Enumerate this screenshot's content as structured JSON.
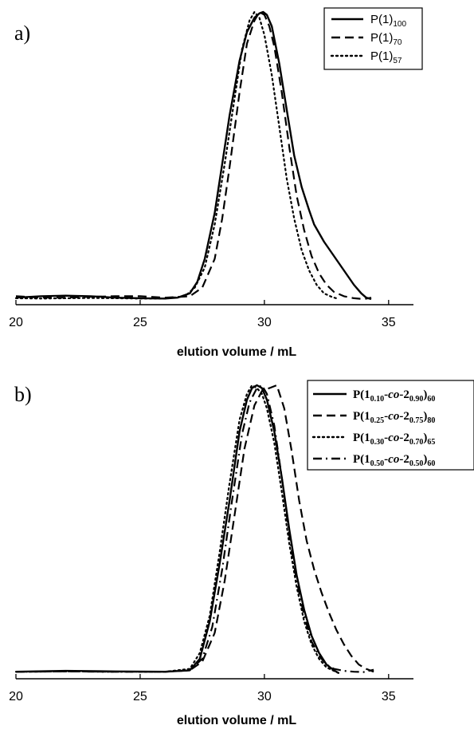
{
  "chart_data": [
    {
      "panel": "a)",
      "type": "line",
      "xlabel": "elution volume / mL",
      "ylabel": "",
      "xlim": [
        20,
        36
      ],
      "ylim": [
        0,
        1.0
      ],
      "xticks": [
        "20",
        "25",
        "30",
        "35"
      ],
      "grid": false,
      "legend_position": "top-right",
      "series": [
        {
          "name": "P(1)100",
          "name_main": "P(1)",
          "name_sub": "100",
          "dash": "solid",
          "x": [
            20,
            21,
            22,
            23,
            24,
            25,
            26,
            26.5,
            27,
            27.3,
            27.6,
            28,
            28.3,
            28.6,
            29,
            29.3,
            29.6,
            29.8,
            29.95,
            30.1,
            30.3,
            30.6,
            30.9,
            31.2,
            31.5,
            31.8,
            32,
            32.4,
            32.8,
            33.2,
            33.6,
            33.9,
            34.1,
            34.3
          ],
          "y": [
            0.005,
            0.01,
            0.012,
            0.01,
            0.005,
            0.003,
            0.002,
            0.005,
            0.02,
            0.06,
            0.14,
            0.3,
            0.47,
            0.64,
            0.83,
            0.93,
            0.98,
            0.995,
            1.0,
            0.99,
            0.95,
            0.82,
            0.66,
            0.5,
            0.39,
            0.31,
            0.26,
            0.2,
            0.15,
            0.1,
            0.05,
            0.02,
            0.005,
            0.0
          ]
        },
        {
          "name": "P(1)70",
          "name_main": "P(1)",
          "name_sub": "70",
          "dash": "dashed",
          "x": [
            20,
            21,
            22,
            23,
            24,
            25,
            26,
            27,
            27.5,
            28,
            28.3,
            28.6,
            29,
            29.3,
            29.6,
            29.8,
            30.0,
            30.2,
            30.4,
            30.7,
            31,
            31.3,
            31.6,
            31.9,
            32.2,
            32.5,
            32.8,
            33.2,
            33.6,
            34.0,
            34.3
          ],
          "y": [
            0.01,
            0.005,
            0.005,
            0.008,
            0.01,
            0.01,
            0.005,
            0.01,
            0.04,
            0.14,
            0.28,
            0.46,
            0.72,
            0.89,
            0.97,
            1.0,
            0.99,
            0.95,
            0.88,
            0.72,
            0.53,
            0.36,
            0.24,
            0.15,
            0.09,
            0.05,
            0.025,
            0.01,
            0.003,
            0.0,
            0.005
          ]
        },
        {
          "name": "P(1)57",
          "name_main": "P(1)",
          "name_sub": "57",
          "dash": "dotted",
          "x": [
            20,
            21,
            22,
            23,
            24,
            25,
            26,
            26.8,
            27.2,
            27.6,
            28,
            28.4,
            28.8,
            29.1,
            29.4,
            29.6,
            29.8,
            30.0,
            30.3,
            30.6,
            30.9,
            31.2,
            31.5,
            31.8,
            32.1,
            32.4,
            32.7,
            33
          ],
          "y": [
            0.003,
            0.002,
            0.003,
            0.004,
            0.003,
            0.002,
            0.002,
            0.01,
            0.04,
            0.11,
            0.26,
            0.47,
            0.7,
            0.87,
            0.97,
            1.0,
            0.98,
            0.92,
            0.78,
            0.6,
            0.42,
            0.28,
            0.17,
            0.1,
            0.05,
            0.02,
            0.008,
            0.0
          ]
        }
      ]
    },
    {
      "panel": "b)",
      "type": "line",
      "xlabel": "elution volume / mL",
      "ylabel": "",
      "xlim": [
        20,
        36
      ],
      "ylim": [
        0,
        1.0
      ],
      "xticks": [
        "20",
        "25",
        "30",
        "35"
      ],
      "grid": false,
      "legend_position": "top-right",
      "series": [
        {
          "name": "P(10.10-co-20.90)60",
          "name_parts": [
            "P(1",
            "0.10",
            "-",
            "co",
            "-2",
            "0.90",
            ")",
            "60"
          ],
          "dash": "solid",
          "x": [
            20,
            22,
            24,
            26,
            27,
            27.4,
            27.8,
            28.2,
            28.6,
            29,
            29.3,
            29.5,
            29.7,
            29.9,
            30.1,
            30.4,
            30.7,
            31,
            31.3,
            31.6,
            31.9,
            32.2,
            32.5,
            32.8,
            33
          ],
          "y": [
            0.005,
            0.008,
            0.006,
            0.005,
            0.01,
            0.05,
            0.18,
            0.38,
            0.6,
            0.84,
            0.95,
            0.99,
            1.0,
            0.99,
            0.95,
            0.84,
            0.68,
            0.5,
            0.34,
            0.22,
            0.13,
            0.07,
            0.03,
            0.01,
            0.0
          ]
        },
        {
          "name": "P(10.25-co-20.75)80",
          "name_parts": [
            "P(1",
            "0.25",
            "-",
            "co",
            "-2",
            "0.75",
            ")",
            "80"
          ],
          "dash": "dashed",
          "x": [
            20,
            22,
            24,
            26,
            27,
            27.5,
            28,
            28.4,
            28.8,
            29.2,
            29.6,
            29.9,
            30.2,
            30.5,
            30.8,
            31.1,
            31.4,
            31.7,
            32,
            32.3,
            32.6,
            32.9,
            33.2,
            33.5,
            33.8,
            34.1,
            34.4
          ],
          "y": [
            0.005,
            0.006,
            0.005,
            0.005,
            0.01,
            0.04,
            0.14,
            0.32,
            0.55,
            0.78,
            0.93,
            0.98,
            0.99,
            1.0,
            0.92,
            0.77,
            0.6,
            0.46,
            0.36,
            0.28,
            0.21,
            0.15,
            0.1,
            0.06,
            0.03,
            0.015,
            0.005
          ]
        },
        {
          "name": "P(10.30-co-20.70)65",
          "name_parts": [
            "P(1",
            "0.30",
            "-",
            "co",
            "-2",
            "0.70",
            ")",
            "65"
          ],
          "dash": "dotted",
          "x": [
            20,
            22,
            24,
            26,
            27,
            27.4,
            27.8,
            28.2,
            28.6,
            29,
            29.3,
            29.5,
            29.7,
            29.9,
            30.1,
            30.4,
            30.7,
            31,
            31.3,
            31.6,
            31.9,
            32.2,
            32.5,
            33
          ],
          "y": [
            0.005,
            0.006,
            0.005,
            0.005,
            0.015,
            0.07,
            0.2,
            0.42,
            0.66,
            0.88,
            0.97,
            1.0,
            0.99,
            0.97,
            0.92,
            0.8,
            0.63,
            0.45,
            0.3,
            0.18,
            0.1,
            0.05,
            0.02,
            0.0
          ]
        },
        {
          "name": "P(10.50-co-20.50)60",
          "name_parts": [
            "P(1",
            "0.50",
            "-",
            "co",
            "-2",
            "0.50",
            ")",
            "60"
          ],
          "dash": "dashdot",
          "x": [
            20,
            22,
            24,
            26,
            27,
            27.5,
            27.9,
            28.3,
            28.7,
            29.1,
            29.4,
            29.7,
            29.9,
            30.1,
            30.4,
            30.7,
            31,
            31.3,
            31.6,
            31.9,
            32.2,
            32.5,
            32.8,
            33.2,
            33.6,
            34.0,
            34.4
          ],
          "y": [
            0.005,
            0.006,
            0.005,
            0.005,
            0.01,
            0.05,
            0.16,
            0.36,
            0.6,
            0.83,
            0.94,
            0.99,
            1.0,
            0.97,
            0.86,
            0.68,
            0.48,
            0.32,
            0.2,
            0.11,
            0.06,
            0.03,
            0.015,
            0.008,
            0.005,
            0.004,
            0.012
          ]
        }
      ]
    }
  ]
}
